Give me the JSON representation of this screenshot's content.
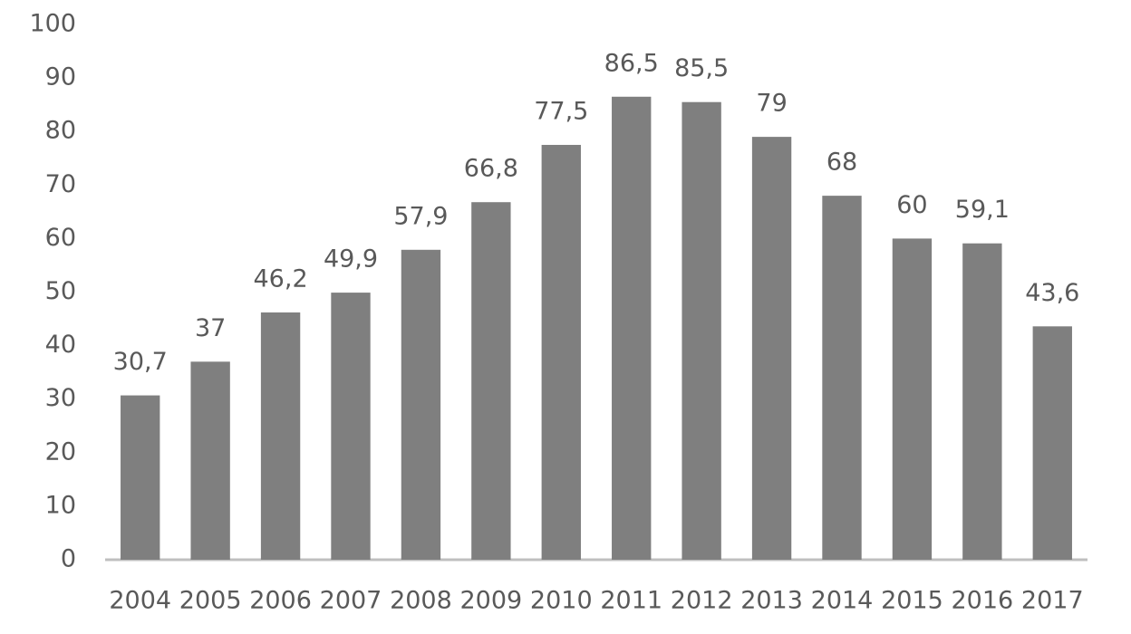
{
  "chart_data": {
    "type": "bar",
    "categories": [
      "2004",
      "2005",
      "2006",
      "2007",
      "2008",
      "2009",
      "2010",
      "2011",
      "2012",
      "2013",
      "2014",
      "2015",
      "2016",
      "2017"
    ],
    "values": [
      30.7,
      37,
      46.2,
      49.9,
      57.9,
      66.8,
      77.5,
      86.5,
      85.5,
      79,
      68,
      60,
      59.1,
      43.6
    ],
    "value_labels": [
      "30,7",
      "37",
      "46,2",
      "49,9",
      "57,9",
      "66,8",
      "77,5",
      "86,5",
      "85,5",
      "79",
      "68",
      "60",
      "59,1",
      "43,6"
    ],
    "color": "#7f7f7f",
    "ylim": [
      0,
      100
    ],
    "yticks": [
      0,
      10,
      20,
      30,
      40,
      50,
      60,
      70,
      80,
      90,
      100
    ],
    "grid": false
  }
}
